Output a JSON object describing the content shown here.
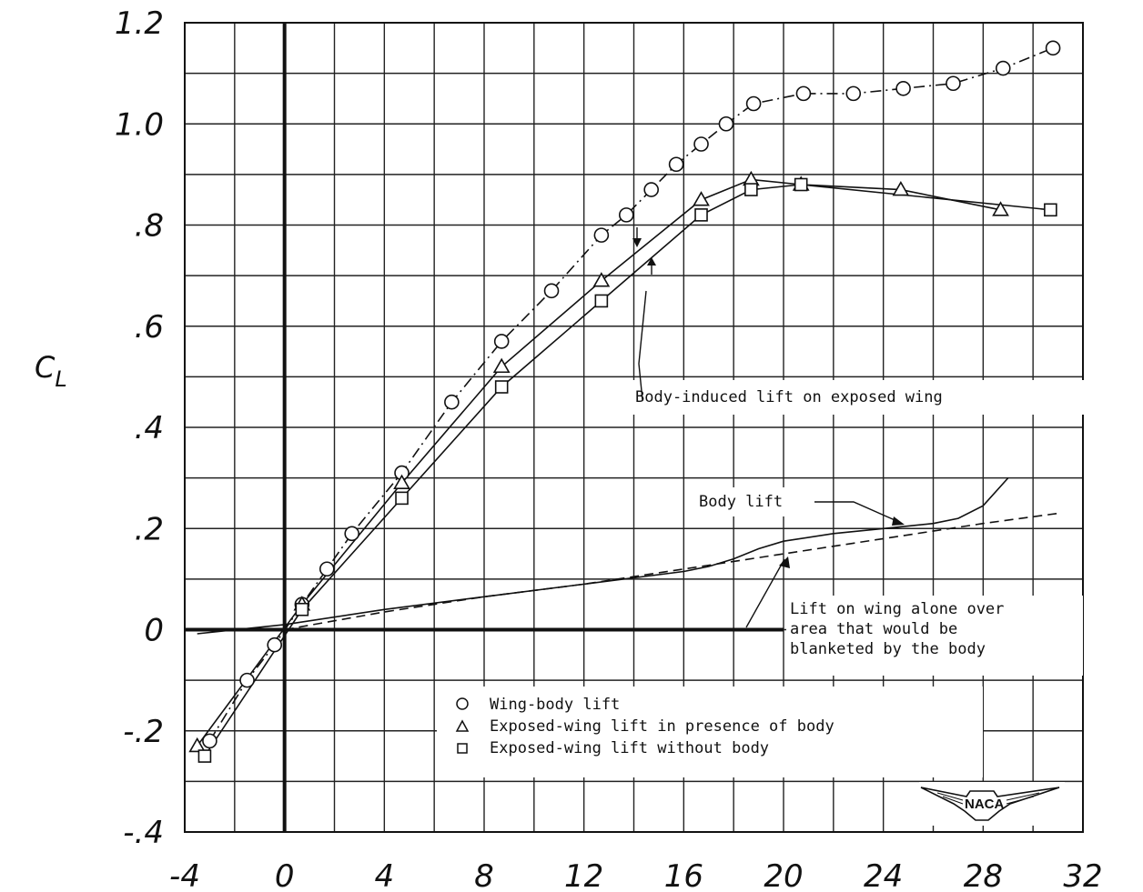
{
  "chart_data": {
    "type": "line",
    "xlim": [
      -4,
      32
    ],
    "ylim": [
      -0.4,
      1.2
    ],
    "x_ticks": [
      "-4",
      "0",
      "4",
      "8",
      "12",
      "16",
      "20",
      "24",
      "28",
      "32"
    ],
    "y_ticks": [
      {
        "v": 1.2,
        "label": "1.2"
      },
      {
        "v": 1.0,
        "label": "1.0"
      },
      {
        "v": 0.8,
        "label": ".8"
      },
      {
        "v": 0.6,
        "label": ".6"
      },
      {
        "v": 0.4,
        "label": ".4"
      },
      {
        "v": 0.2,
        "label": ".2"
      },
      {
        "v": 0.0,
        "label": "0"
      },
      {
        "v": -0.2,
        "label": "-.2"
      },
      {
        "v": -0.4,
        "label": "-.4"
      }
    ],
    "ylabel": "CL",
    "grid": true,
    "series": [
      {
        "name": "Wing-body lift",
        "marker": "circle",
        "line": "dash-dot",
        "x": [
          -3,
          -1.5,
          -0.4,
          0.7,
          1.7,
          2.7,
          4.7,
          6.7,
          8.7,
          10.7,
          12.7,
          13.7,
          14.7,
          15.7,
          16.7,
          17.7,
          18.8,
          20.8,
          22.8,
          24.8,
          26.8,
          28.8,
          30.8
        ],
        "y": [
          -0.22,
          -0.1,
          -0.03,
          0.05,
          0.12,
          0.19,
          0.31,
          0.45,
          0.57,
          0.67,
          0.78,
          0.82,
          0.87,
          0.92,
          0.96,
          1.0,
          1.04,
          1.06,
          1.06,
          1.07,
          1.08,
          1.11,
          1.15
        ]
      },
      {
        "name": "Exposed-wing lift in presence of body",
        "marker": "triangle",
        "line": "solid",
        "x": [
          -3.5,
          0.7,
          4.7,
          8.7,
          12.7,
          16.7,
          18.7,
          20.7,
          24.7,
          28.7
        ],
        "y": [
          -0.23,
          0.05,
          0.29,
          0.52,
          0.69,
          0.85,
          0.89,
          0.88,
          0.87,
          0.83
        ]
      },
      {
        "name": "Exposed-wing lift without body",
        "marker": "square",
        "line": "solid",
        "x": [
          -3.2,
          0.7,
          4.7,
          8.7,
          12.7,
          16.7,
          18.7,
          20.7,
          30.7
        ],
        "y": [
          -0.25,
          0.04,
          0.26,
          0.48,
          0.65,
          0.82,
          0.87,
          0.88,
          0.83
        ]
      },
      {
        "name": "Body lift",
        "marker": "none",
        "line": "solid",
        "x": [
          -3.5,
          0,
          4,
          8,
          12,
          16,
          17,
          18,
          19,
          20,
          22,
          24,
          26,
          27,
          28,
          29
        ],
        "y": [
          -0.008,
          0.01,
          0.04,
          0.065,
          0.09,
          0.115,
          0.125,
          0.14,
          0.16,
          0.175,
          0.19,
          0.2,
          0.21,
          0.22,
          0.245,
          0.3
        ]
      },
      {
        "name": "Lift on wing alone over area that would be blanketed by the body",
        "marker": "none",
        "line": "dashed",
        "x": [
          0,
          4,
          8,
          12,
          16,
          20,
          24,
          28,
          31
        ],
        "y": [
          0.0,
          0.035,
          0.065,
          0.09,
          0.12,
          0.15,
          0.18,
          0.21,
          0.23
        ]
      }
    ],
    "legend": {
      "placement": "bottom-center",
      "entries": [
        {
          "marker": "circle",
          "label": "Wing-body lift"
        },
        {
          "marker": "triangle",
          "label": "Exposed-wing lift in presence of body"
        },
        {
          "marker": "square",
          "label": "Exposed-wing lift without body"
        }
      ]
    },
    "annotations": {
      "body_induced": "Body-induced lift on exposed wing",
      "body_lift": "Body lift",
      "wing_alone": [
        "Lift on wing alone over",
        "area that would be",
        "blanketed by the body"
      ]
    },
    "logo": "NACA"
  }
}
